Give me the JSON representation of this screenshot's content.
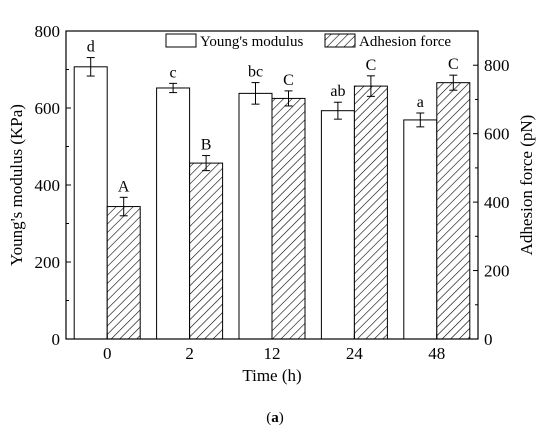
{
  "chart_data": {
    "type": "bar",
    "xlabel": "Time (h)",
    "categories": [
      "0",
      "2",
      "12",
      "24",
      "48"
    ],
    "y_left": {
      "label": "Young's modulus (KPa)",
      "lim": [
        0,
        800
      ],
      "ticks": [
        "0",
        "200",
        "400",
        "600",
        "800"
      ]
    },
    "y_right": {
      "label": "Adhesion force (pN)",
      "lim": [
        0,
        900
      ],
      "ticks": [
        "0",
        "200",
        "400",
        "600",
        "800"
      ]
    },
    "series": [
      {
        "name": "Young's modulus",
        "axis": "left",
        "pattern": "open",
        "values": [
          707,
          652,
          638,
          593,
          569
        ],
        "errors": [
          24,
          12,
          28,
          22,
          18
        ],
        "labels": [
          "d",
          "c",
          "bc",
          "ab",
          "a"
        ]
      },
      {
        "name": "Adhesion force",
        "axis": "right",
        "pattern": "hatched",
        "values": [
          387,
          514,
          703,
          739,
          749
        ],
        "errors": [
          27,
          22,
          22,
          30,
          22
        ],
        "labels": [
          "A",
          "B",
          "C",
          "C",
          "C"
        ]
      }
    ],
    "legend_position": "top-center",
    "grid": false
  },
  "caption": {
    "prefix": "(",
    "letter": "a",
    "suffix": ")"
  }
}
